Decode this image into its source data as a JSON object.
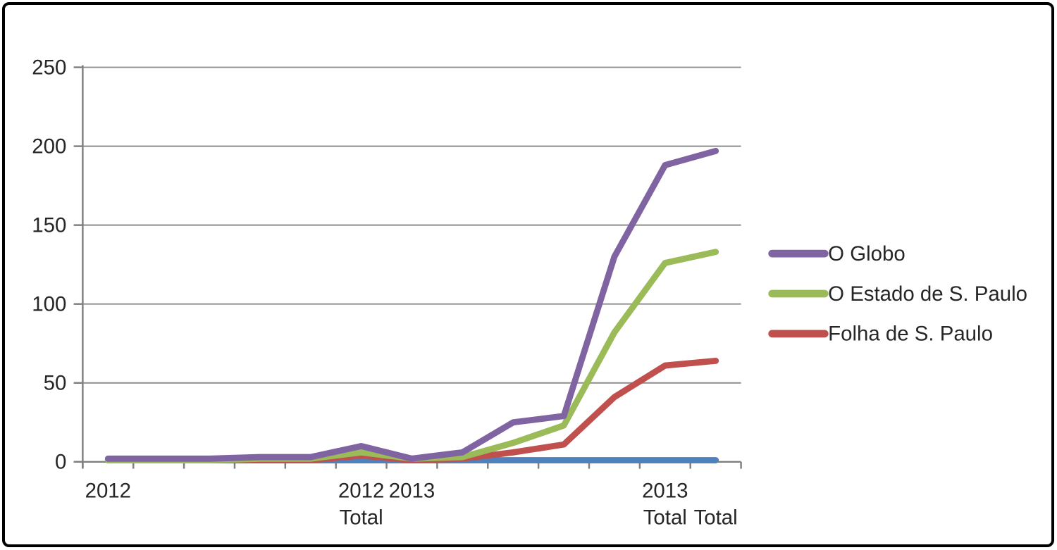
{
  "frame": {
    "background": "#FFFFFF",
    "border_color": "#000000"
  },
  "colors": {
    "gridline": "#8C8C8C",
    "axis": "#7F7F7F",
    "tick": "#7F7F7F",
    "label_text": "#262626"
  },
  "chart_data": {
    "type": "line",
    "title": "",
    "xlabel": "",
    "ylabel": "",
    "grid": true,
    "legend_position": "right",
    "y_axis": {
      "min": 0,
      "max": 250,
      "ticks": [
        0,
        50,
        100,
        150,
        200,
        250
      ]
    },
    "categories": [
      "2012",
      "",
      "",
      "",
      "",
      "2012 Total",
      "2013",
      "",
      "",
      "",
      "",
      "2013 Total",
      "Total"
    ],
    "x_tick_labels_row1": [
      "2012",
      "",
      "",
      "",
      "",
      "2012",
      "2013",
      "",
      "",
      "",
      "",
      "2013",
      ""
    ],
    "x_tick_labels_row2": [
      "",
      "",
      "",
      "",
      "",
      "Total",
      "",
      "",
      "",
      "",
      "",
      "Total",
      "Total"
    ],
    "series": [
      {
        "name": "",
        "color": "#4F81BD",
        "in_legend": false,
        "values": [
          null,
          null,
          null,
          null,
          1,
          1,
          1,
          1,
          1,
          1,
          1,
          1,
          1
        ]
      },
      {
        "name": "Folha de S. Paulo",
        "color": "#C0504D",
        "in_legend": true,
        "values": [
          1,
          1,
          1,
          1,
          1,
          4,
          1,
          2,
          6,
          11,
          41,
          61,
          64
        ]
      },
      {
        "name": "O Estado de S. Paulo",
        "color": "#9BBB59",
        "in_legend": true,
        "values": [
          1,
          1,
          1,
          2,
          2,
          6,
          2,
          3,
          12,
          23,
          82,
          126,
          133
        ]
      },
      {
        "name": "O Globo",
        "color": "#8064A2",
        "in_legend": true,
        "values": [
          2,
          2,
          2,
          3,
          3,
          10,
          2,
          6,
          25,
          29,
          130,
          188,
          197
        ]
      }
    ],
    "legend": [
      {
        "label": "O Globo",
        "color": "#8064A2"
      },
      {
        "label": "O Estado de S. Paulo",
        "color": "#9BBB59"
      },
      {
        "label": "Folha de S. Paulo",
        "color": "#C0504D"
      }
    ]
  }
}
